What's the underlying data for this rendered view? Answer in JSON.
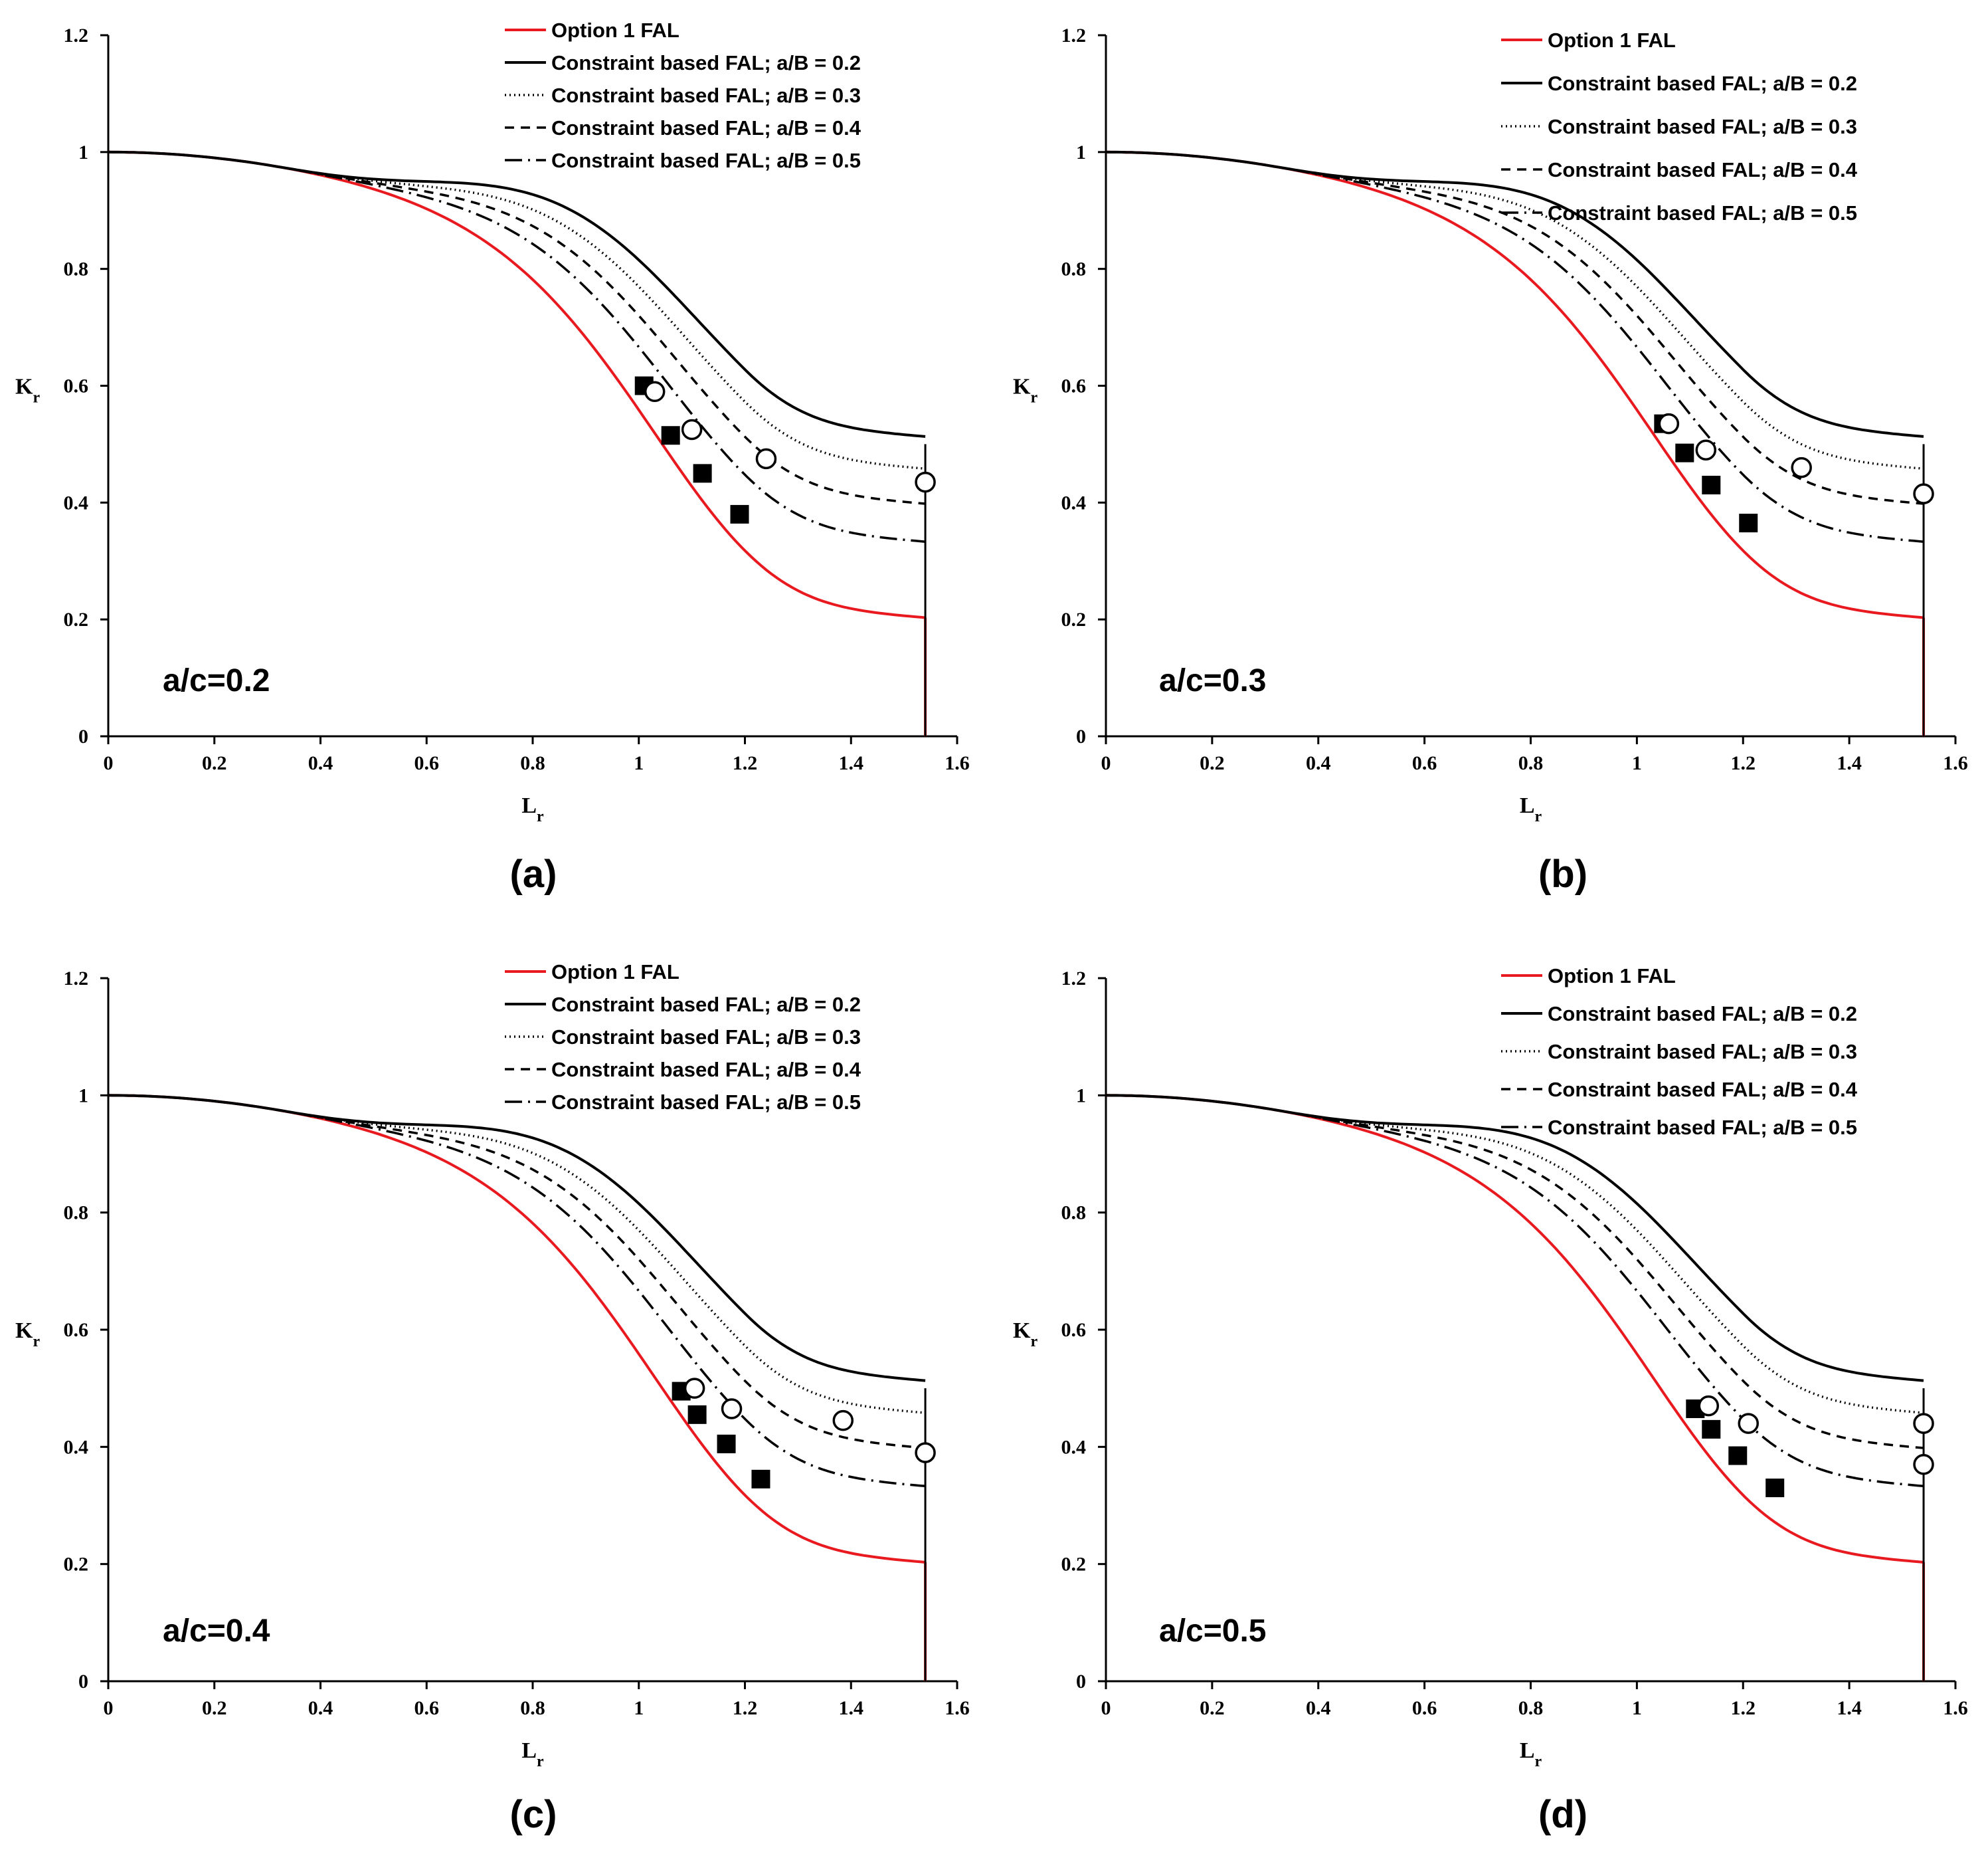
{
  "figure": {
    "panels_order": [
      "a",
      "b",
      "c",
      "d"
    ]
  },
  "chart_data": [
    {
      "id": "a",
      "type": "line",
      "caption": "(a)",
      "annotation": "a/c=0.2",
      "xlabel": "L",
      "xlabel_sub": "r",
      "ylabel": "K",
      "ylabel_sub": "r",
      "xlim": [
        0,
        1.6
      ],
      "ylim": [
        0,
        1.2
      ],
      "xticks": [
        "0",
        "0.2",
        "0.4",
        "0.6",
        "0.8",
        "1",
        "1.2",
        "1.4",
        "1.6"
      ],
      "yticks": [
        "0",
        "0.2",
        "0.4",
        "0.6",
        "0.8",
        "1",
        "1.2"
      ],
      "legend_position": "top-right",
      "series": [
        {
          "name": "Option 1 FAL",
          "style": "solid",
          "color": "#e8191f",
          "kind": "option1"
        },
        {
          "name": "Constraint based FAL; a/B = 0.2",
          "style": "solid",
          "color": "#000000",
          "kind": "constraint",
          "plateau": 0.5
        },
        {
          "name": "Constraint based FAL; a/B = 0.3",
          "style": "dotted",
          "color": "#000000",
          "kind": "constraint",
          "plateau": 0.445
        },
        {
          "name": "Constraint based FAL; a/B = 0.4",
          "style": "dashed",
          "color": "#000000",
          "kind": "constraint",
          "plateau": 0.385
        },
        {
          "name": "Constraint based FAL; a/B = 0.5",
          "style": "dashdot",
          "color": "#000000",
          "kind": "constraint",
          "plateau": 0.32
        }
      ],
      "squares": [
        [
          1.01,
          0.6
        ],
        [
          1.06,
          0.515
        ],
        [
          1.12,
          0.45
        ],
        [
          1.19,
          0.38
        ]
      ],
      "circles": [
        [
          1.03,
          0.59
        ],
        [
          1.1,
          0.525
        ],
        [
          1.24,
          0.475
        ],
        [
          1.54,
          0.435
        ]
      ]
    },
    {
      "id": "b",
      "type": "line",
      "caption": "(b)",
      "annotation": "a/c=0.3",
      "xlabel": "L",
      "xlabel_sub": "r",
      "ylabel": "K",
      "ylabel_sub": "r",
      "xlim": [
        0,
        1.6
      ],
      "ylim": [
        0,
        1.2
      ],
      "xticks": [
        "0",
        "0.2",
        "0.4",
        "0.6",
        "0.8",
        "1",
        "1.2",
        "1.4",
        "1.6"
      ],
      "yticks": [
        "0",
        "0.2",
        "0.4",
        "0.6",
        "0.8",
        "1",
        "1.2"
      ],
      "legend_position": "top-right",
      "series": [
        {
          "name": "Option 1 FAL",
          "style": "solid",
          "color": "#e8191f",
          "kind": "option1"
        },
        {
          "name": "Constraint based FAL; a/B = 0.2",
          "style": "solid",
          "color": "#000000",
          "kind": "constraint",
          "plateau": 0.5
        },
        {
          "name": "Constraint based FAL; a/B = 0.3",
          "style": "dotted",
          "color": "#000000",
          "kind": "constraint",
          "plateau": 0.445
        },
        {
          "name": "Constraint based FAL; a/B = 0.4",
          "style": "dashed",
          "color": "#000000",
          "kind": "constraint",
          "plateau": 0.385
        },
        {
          "name": "Constraint based FAL; a/B = 0.5",
          "style": "dashdot",
          "color": "#000000",
          "kind": "constraint",
          "plateau": 0.32
        }
      ],
      "squares": [
        [
          1.05,
          0.535
        ],
        [
          1.09,
          0.485
        ],
        [
          1.14,
          0.43
        ],
        [
          1.21,
          0.365
        ]
      ],
      "circles": [
        [
          1.06,
          0.535
        ],
        [
          1.13,
          0.49
        ],
        [
          1.31,
          0.46
        ],
        [
          1.54,
          0.415
        ]
      ]
    },
    {
      "id": "c",
      "type": "line",
      "caption": "(c)",
      "annotation": "a/c=0.4",
      "xlabel": "L",
      "xlabel_sub": "r",
      "ylabel": "K",
      "ylabel_sub": "r",
      "xlim": [
        0,
        1.6
      ],
      "ylim": [
        0,
        1.2
      ],
      "xticks": [
        "0",
        "0.2",
        "0.4",
        "0.6",
        "0.8",
        "1",
        "1.2",
        "1.4",
        "1.6"
      ],
      "yticks": [
        "0",
        "0.2",
        "0.4",
        "0.6",
        "0.8",
        "1",
        "1.2"
      ],
      "legend_position": "top-right",
      "series": [
        {
          "name": "Option 1 FAL",
          "style": "solid",
          "color": "#e8191f",
          "kind": "option1"
        },
        {
          "name": "Constraint based FAL; a/B = 0.2",
          "style": "solid",
          "color": "#000000",
          "kind": "constraint",
          "plateau": 0.5
        },
        {
          "name": "Constraint based FAL; a/B = 0.3",
          "style": "dotted",
          "color": "#000000",
          "kind": "constraint",
          "plateau": 0.445
        },
        {
          "name": "Constraint based FAL; a/B = 0.4",
          "style": "dashed",
          "color": "#000000",
          "kind": "constraint",
          "plateau": 0.385
        },
        {
          "name": "Constraint based FAL; a/B = 0.5",
          "style": "dashdot",
          "color": "#000000",
          "kind": "constraint",
          "plateau": 0.32
        }
      ],
      "squares": [
        [
          1.08,
          0.495
        ],
        [
          1.11,
          0.455
        ],
        [
          1.165,
          0.405
        ],
        [
          1.23,
          0.345
        ]
      ],
      "circles": [
        [
          1.105,
          0.5
        ],
        [
          1.175,
          0.465
        ],
        [
          1.385,
          0.445
        ],
        [
          1.54,
          0.39
        ]
      ]
    },
    {
      "id": "d",
      "type": "line",
      "caption": "(d)",
      "annotation": "a/c=0.5",
      "xlabel": "L",
      "xlabel_sub": "r",
      "ylabel": "K",
      "ylabel_sub": "r",
      "xlim": [
        0,
        1.6
      ],
      "ylim": [
        0,
        1.2
      ],
      "xticks": [
        "0",
        "0.2",
        "0.4",
        "0.6",
        "0.8",
        "1",
        "1.2",
        "1.4",
        "1.6"
      ],
      "yticks": [
        "0",
        "0.2",
        "0.4",
        "0.6",
        "0.8",
        "1",
        "1.2"
      ],
      "legend_position": "top-right",
      "series": [
        {
          "name": "Option 1 FAL",
          "style": "solid",
          "color": "#e8191f",
          "kind": "option1"
        },
        {
          "name": "Constraint based FAL; a/B = 0.2",
          "style": "solid",
          "color": "#000000",
          "kind": "constraint",
          "plateau": 0.5
        },
        {
          "name": "Constraint based FAL; a/B = 0.3",
          "style": "dotted",
          "color": "#000000",
          "kind": "constraint",
          "plateau": 0.445
        },
        {
          "name": "Constraint based FAL; a/B = 0.4",
          "style": "dashed",
          "color": "#000000",
          "kind": "constraint",
          "plateau": 0.385
        },
        {
          "name": "Constraint based FAL; a/B = 0.5",
          "style": "dashdot",
          "color": "#000000",
          "kind": "constraint",
          "plateau": 0.32
        }
      ],
      "squares": [
        [
          1.11,
          0.465
        ],
        [
          1.14,
          0.43
        ],
        [
          1.19,
          0.385
        ],
        [
          1.26,
          0.33
        ]
      ],
      "circles": [
        [
          1.135,
          0.47
        ],
        [
          1.21,
          0.44
        ],
        [
          1.54,
          0.44
        ],
        [
          1.54,
          0.37
        ]
      ]
    }
  ]
}
